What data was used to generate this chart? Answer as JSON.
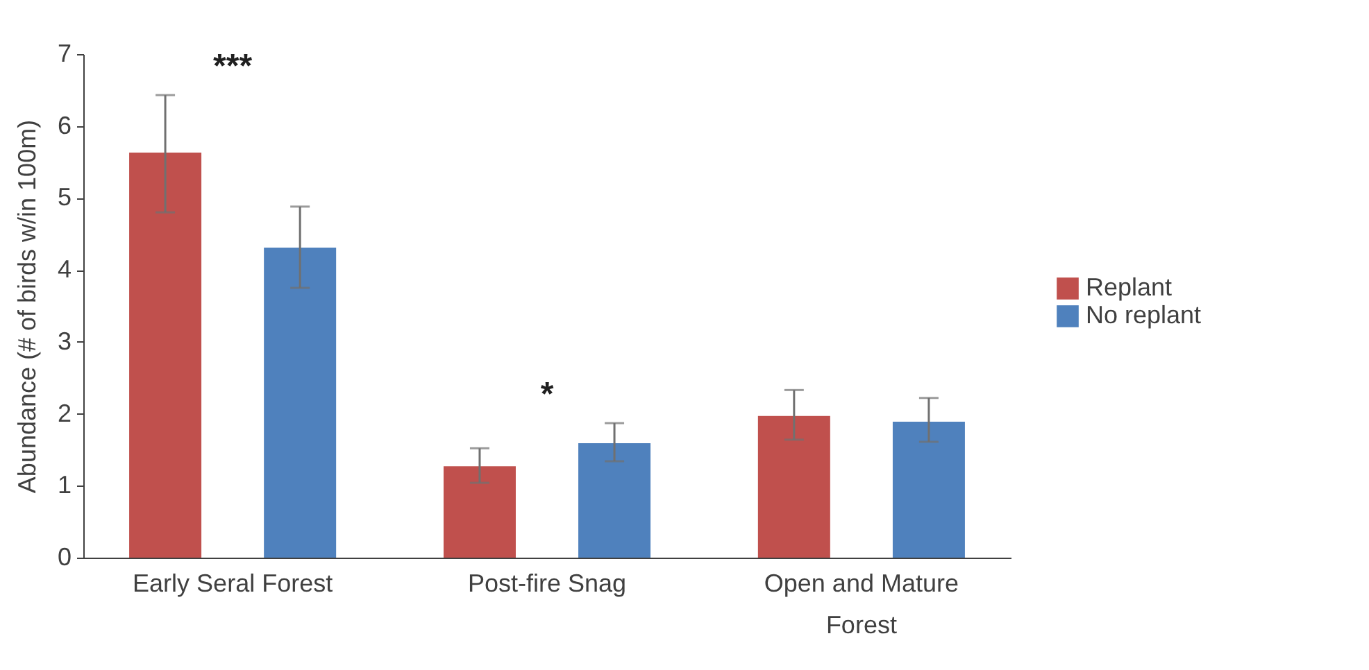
{
  "chart_data": {
    "type": "bar",
    "ylabel": "Abundance (# of birds w/in 100m)",
    "categories": [
      "Early Seral Forest",
      "Post-fire Snag",
      "Open and Mature Forest"
    ],
    "series": [
      {
        "name": "Replant",
        "color": "#c0504d",
        "values": [
          5.63,
          1.27,
          1.97
        ],
        "errors": [
          [
            4.8,
            6.43
          ],
          [
            1.04,
            1.52
          ],
          [
            1.64,
            2.33
          ]
        ]
      },
      {
        "name": "No replant",
        "color": "#4f81bd",
        "values": [
          4.31,
          1.59,
          1.89
        ],
        "errors": [
          [
            3.75,
            4.88
          ],
          [
            1.34,
            1.87
          ],
          [
            1.61,
            2.22
          ]
        ]
      }
    ],
    "ylim": [
      0,
      7
    ],
    "yticks": [
      0,
      1,
      2,
      3,
      4,
      5,
      6,
      7
    ],
    "grid": false,
    "legend": "right",
    "annotations": [
      "***",
      "*"
    ]
  }
}
